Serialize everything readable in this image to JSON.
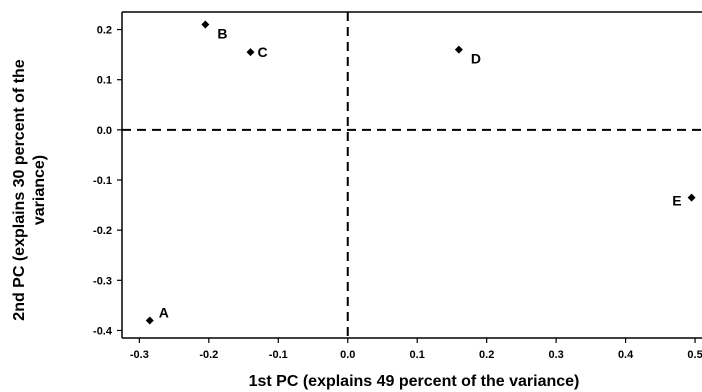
{
  "chart_data": {
    "type": "scatter",
    "title": "",
    "xlabel": "1st PC (explains 49 percent of the variance)",
    "ylabel_lines": [
      "2nd PC (explains 30 percent of the",
      "variance)"
    ],
    "xlim": [
      -0.325,
      0.51
    ],
    "ylim": [
      -0.415,
      0.235
    ],
    "x_ticks": [
      -0.3,
      -0.2,
      -0.1,
      0.0,
      0.1,
      0.2,
      0.3,
      0.4,
      0.5
    ],
    "x_tick_labels": [
      "-0.3",
      "-0.2",
      "-0.1",
      "0.0",
      "0.1",
      "0.2",
      "0.3",
      "0.4",
      "0.5"
    ],
    "y_ticks": [
      -0.4,
      -0.3,
      -0.2,
      -0.1,
      0.0,
      0.1,
      0.2
    ],
    "y_tick_labels": [
      "-0.4",
      "-0.3",
      "-0.2",
      "-0.1",
      "0.0",
      "0.1",
      "0.2"
    ],
    "reference_lines": {
      "x": 0,
      "y": 0,
      "style": "dashed"
    },
    "grid": false,
    "marker": "diamond",
    "points": [
      {
        "label": "A",
        "x": -0.285,
        "y": -0.38,
        "label_pos": "upper-right"
      },
      {
        "label": "B",
        "x": -0.205,
        "y": 0.21,
        "label_pos": "lower-right"
      },
      {
        "label": "C",
        "x": -0.14,
        "y": 0.155,
        "label_pos": "right"
      },
      {
        "label": "D",
        "x": 0.16,
        "y": 0.16,
        "label_pos": "lower-right"
      },
      {
        "label": "E",
        "x": 0.495,
        "y": -0.135,
        "label_pos": "left"
      }
    ]
  }
}
